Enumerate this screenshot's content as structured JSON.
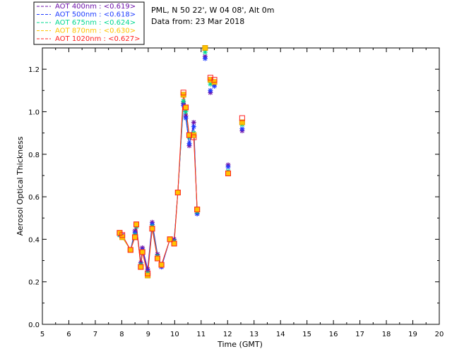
{
  "header": {
    "site": "PML, N 50 22', W 04 08', Alt 0m",
    "date": "Data from: 23 Mar 2018"
  },
  "legend": [
    {
      "label": "AOT  400nm : <0.619>",
      "color": "#6b0fa8"
    },
    {
      "label": "AOT  500nm : <0.618>",
      "color": "#1f3cff"
    },
    {
      "label": "AOT  675nm : <0.624>",
      "color": "#00d890"
    },
    {
      "label": "AOT  870nm : <0.630>",
      "color": "#ffc300"
    },
    {
      "label": "AOT 1020nm : <0.627>",
      "color": "#ff2020"
    }
  ],
  "chart_data": {
    "type": "scatter",
    "xlabel": "Time (GMT)",
    "ylabel": "Aerosol Optical Thickness",
    "xlim": [
      5,
      20
    ],
    "ylim": [
      0.0,
      1.3
    ],
    "xticks": [
      "5",
      "6",
      "7",
      "8",
      "9",
      "10",
      "11",
      "12",
      "13",
      "14",
      "15",
      "16",
      "17",
      "18",
      "19",
      "20"
    ],
    "yticks": [
      "0.0",
      "0.2",
      "0.4",
      "0.6",
      "0.8",
      "1.0",
      "1.2"
    ],
    "line_color": "#ff2020",
    "x": [
      7.92,
      8.02,
      8.33,
      8.5,
      8.55,
      8.72,
      8.78,
      8.98,
      9.15,
      9.35,
      9.5,
      9.82,
      9.98,
      10.12,
      10.33,
      10.42,
      10.55,
      10.72,
      10.85
    ],
    "series": [
      {
        "name": "AOT  400nm",
        "values": [
          0.42,
          0.42,
          0.35,
          0.44,
          0.47,
          0.29,
          0.36,
          0.26,
          0.48,
          0.33,
          0.27,
          0.4,
          0.4,
          0.62,
          1.04,
          0.98,
          0.84,
          0.95,
          0.52
        ]
      },
      {
        "name": "AOT  500nm",
        "values": [
          0.42,
          0.41,
          0.35,
          0.43,
          0.46,
          0.28,
          0.35,
          0.25,
          0.47,
          0.32,
          0.27,
          0.4,
          0.39,
          0.62,
          1.03,
          0.97,
          0.85,
          0.93,
          0.52
        ]
      },
      {
        "name": "AOT  675nm",
        "values": [
          0.42,
          0.41,
          0.35,
          0.42,
          0.46,
          0.28,
          0.34,
          0.24,
          0.46,
          0.32,
          0.28,
          0.4,
          0.39,
          0.62,
          1.05,
          1.0,
          0.88,
          0.9,
          0.53
        ]
      },
      {
        "name": "AOT  870nm",
        "values": [
          0.43,
          0.41,
          0.35,
          0.41,
          0.47,
          0.27,
          0.34,
          0.23,
          0.45,
          0.31,
          0.28,
          0.4,
          0.38,
          0.62,
          1.08,
          1.02,
          0.89,
          0.89,
          0.54
        ]
      },
      {
        "name": "AOT 1020nm",
        "values": [
          0.43,
          0.42,
          0.35,
          0.41,
          0.47,
          0.27,
          0.34,
          0.24,
          0.45,
          0.31,
          0.28,
          0.4,
          0.38,
          0.62,
          1.09,
          1.02,
          0.89,
          0.88,
          0.54
        ]
      }
    ],
    "late_points": {
      "x": [
        11.15,
        11.35,
        11.5,
        12.02,
        12.55
      ],
      "values": [
        [
          1.26,
          1.09,
          1.13,
          0.75,
          0.91
        ],
        [
          1.25,
          1.1,
          1.12,
          0.74,
          0.92
        ],
        [
          1.28,
          1.13,
          1.14,
          0.72,
          0.94
        ],
        [
          1.3,
          1.15,
          1.14,
          0.71,
          0.95
        ],
        [
          1.31,
          1.16,
          1.15,
          0.71,
          0.97
        ]
      ]
    }
  }
}
